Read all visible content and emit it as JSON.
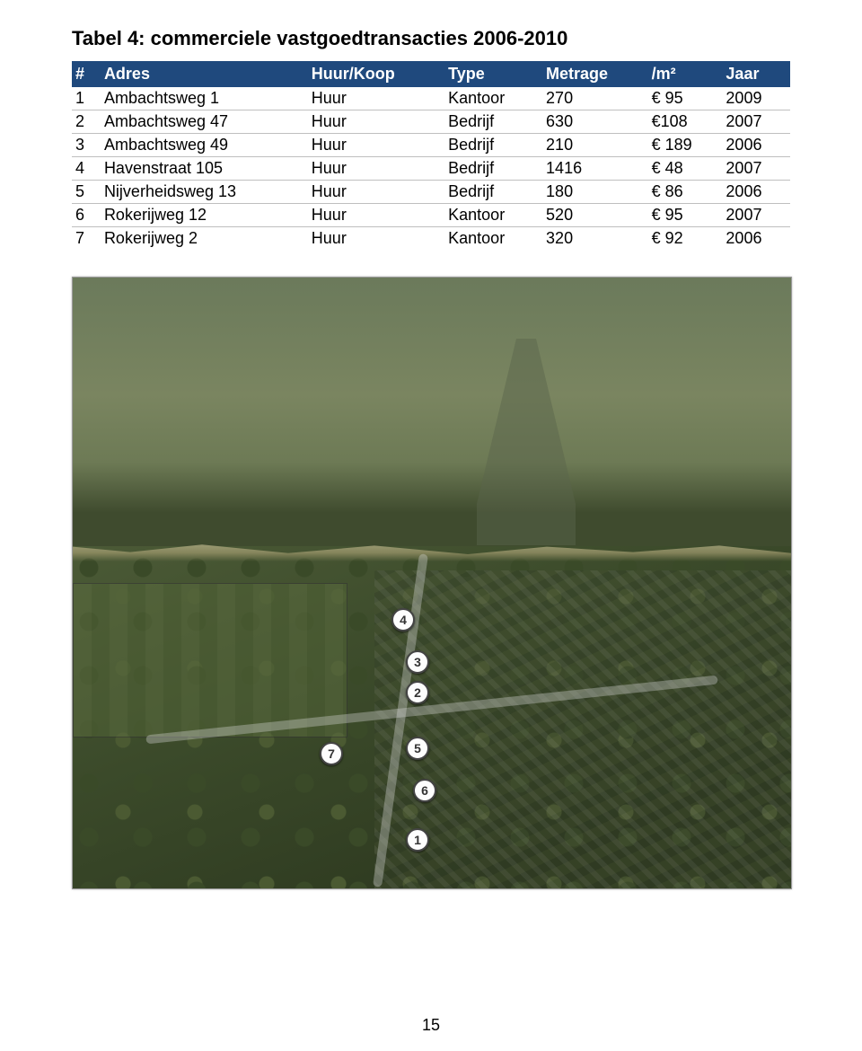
{
  "title": "Tabel 4: commerciele vastgoedtransacties 2006-2010",
  "table": {
    "header_bg": "#1f497d",
    "header_color": "#ffffff",
    "row_border": "#bfbfbf",
    "columns": [
      "#",
      "Adres",
      "Huur/Koop",
      "Type",
      "Metrage",
      "/m²",
      "Jaar"
    ],
    "rows": [
      [
        "1",
        "Ambachtsweg 1",
        "Huur",
        "Kantoor",
        "270",
        "€ 95",
        "2009"
      ],
      [
        "2",
        "Ambachtsweg 47",
        "Huur",
        "Bedrijf",
        "630",
        "€108",
        "2007"
      ],
      [
        "3",
        "Ambachtsweg 49",
        "Huur",
        "Bedrijf",
        "210",
        "€ 189",
        "2006"
      ],
      [
        "4",
        "Havenstraat 105",
        "Huur",
        "Bedrijf",
        "1416",
        "€ 48",
        "2007"
      ],
      [
        "5",
        "Nijverheidsweg 13",
        "Huur",
        "Bedrijf",
        "180",
        "€ 86",
        "2006"
      ],
      [
        "6",
        "Rokerijweg 12",
        "Huur",
        "Kantoor",
        "520",
        "€ 95",
        "2007"
      ],
      [
        "7",
        "Rokerijweg 2",
        "Huur",
        "Kantoor",
        "320",
        "€ 92",
        "2006"
      ]
    ]
  },
  "map": {
    "markers": [
      {
        "label": "1",
        "x": 48,
        "y": 92
      },
      {
        "label": "2",
        "x": 48,
        "y": 68
      },
      {
        "label": "3",
        "x": 48,
        "y": 63
      },
      {
        "label": "4",
        "x": 46,
        "y": 56
      },
      {
        "label": "5",
        "x": 48,
        "y": 77
      },
      {
        "label": "6",
        "x": 49,
        "y": 84
      },
      {
        "label": "7",
        "x": 36,
        "y": 78
      }
    ]
  },
  "page_number": "15"
}
